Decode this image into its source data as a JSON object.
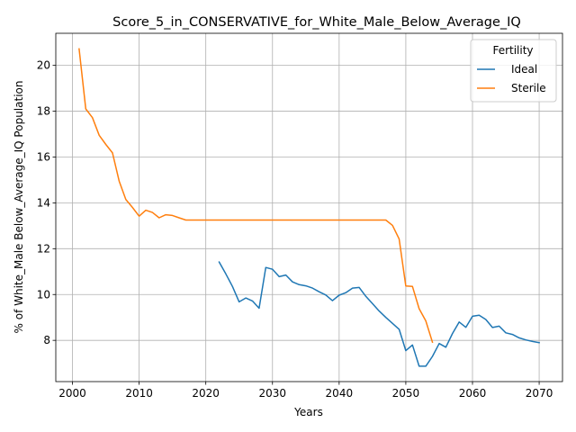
{
  "chart_data": {
    "type": "line",
    "title": "Score_5_in_CONSERVATIVE_for_White_Male_Below_Average_IQ",
    "xlabel": "Years",
    "ylabel": "% of White_Male Below_Average_IQ Population",
    "xlim": [
      1997.5,
      2073.5
    ],
    "ylim": [
      6.2,
      21.4
    ],
    "xticks": [
      2000,
      2010,
      2020,
      2030,
      2040,
      2050,
      2060,
      2070
    ],
    "yticks": [
      8,
      10,
      12,
      14,
      16,
      18,
      20
    ],
    "grid": true,
    "legend": {
      "title": "Fertility",
      "position": "top-right"
    },
    "series": [
      {
        "name": "Ideal",
        "color": "#1f77b4",
        "x": [
          2022,
          2023,
          2024,
          2025,
          2026,
          2027,
          2028,
          2029,
          2030,
          2031,
          2032,
          2033,
          2034,
          2035,
          2036,
          2037,
          2038,
          2039,
          2040,
          2041,
          2042,
          2043,
          2044,
          2045,
          2046,
          2047,
          2048,
          2049,
          2050,
          2051,
          2052,
          2053,
          2054,
          2055,
          2056,
          2057,
          2058,
          2059,
          2060,
          2061,
          2062,
          2063,
          2064,
          2065,
          2066,
          2067,
          2068,
          2069,
          2070
        ],
        "y": [
          11.42,
          10.9,
          10.35,
          9.68,
          9.85,
          9.72,
          9.4,
          11.18,
          11.1,
          10.78,
          10.85,
          10.55,
          10.43,
          10.38,
          10.28,
          10.12,
          9.98,
          9.73,
          9.97,
          10.08,
          10.28,
          10.31,
          9.92,
          9.6,
          9.28,
          9.0,
          8.74,
          8.48,
          7.55,
          7.8,
          6.87,
          6.87,
          7.3,
          7.86,
          7.7,
          8.3,
          8.8,
          8.57,
          9.05,
          9.1,
          8.91,
          8.56,
          8.62,
          8.33,
          8.26,
          8.11,
          8.02,
          7.95,
          7.9
        ]
      },
      {
        "name": "Sterile",
        "color": "#ff7f0e",
        "x": [
          2001,
          2002,
          2003,
          2004,
          2005,
          2006,
          2007,
          2008,
          2009,
          2010,
          2011,
          2012,
          2013,
          2014,
          2015,
          2016,
          2017,
          2018,
          2019,
          2020,
          2021,
          2022,
          2023,
          2024,
          2025,
          2026,
          2027,
          2028,
          2029,
          2030,
          2031,
          2032,
          2033,
          2034,
          2035,
          2036,
          2037,
          2038,
          2039,
          2040,
          2041,
          2042,
          2043,
          2044,
          2045,
          2046,
          2047,
          2048,
          2049,
          2050,
          2051,
          2052,
          2053,
          2054
        ],
        "y": [
          20.72,
          18.1,
          17.72,
          16.95,
          16.55,
          16.18,
          14.95,
          14.15,
          13.8,
          13.42,
          13.68,
          13.58,
          13.35,
          13.48,
          13.45,
          13.35,
          13.25,
          13.25,
          13.25,
          13.25,
          13.25,
          13.25,
          13.25,
          13.25,
          13.25,
          13.25,
          13.25,
          13.25,
          13.25,
          13.25,
          13.25,
          13.25,
          13.25,
          13.25,
          13.25,
          13.25,
          13.25,
          13.25,
          13.25,
          13.25,
          13.25,
          13.25,
          13.25,
          13.25,
          13.25,
          13.25,
          13.25,
          13.02,
          12.42,
          10.37,
          10.35,
          9.38,
          8.85,
          7.92
        ]
      }
    ]
  }
}
